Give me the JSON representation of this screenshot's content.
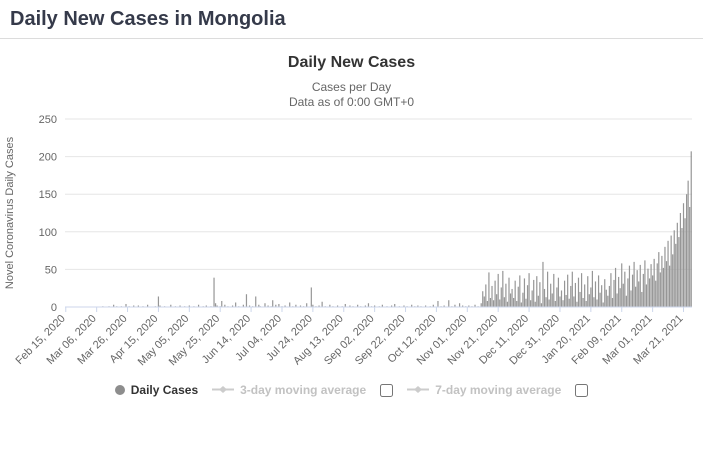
{
  "page": {
    "title": "Daily New Cases in Mongolia"
  },
  "chart": {
    "title": "Daily New Cases",
    "subtitle_line1": "Cases per Day",
    "subtitle_line2": "Data as of 0:00 GMT+0"
  },
  "legend": {
    "daily_cases": "Daily Cases",
    "ma3": "3-day moving average",
    "ma7": "7-day moving average"
  },
  "colors": {
    "bar": "#969696",
    "grid": "#e6e6e6",
    "axis_line": "#ccd6eb",
    "axis_text": "#666666",
    "disabled_legend": "#c2c2c2"
  },
  "chart_data": {
    "type": "bar",
    "title": "Daily New Cases",
    "subtitle": [
      "Cases per Day",
      "Data as of 0:00 GMT+0"
    ],
    "ylabel": "Novel Coronavirus Daily Cases",
    "xlabel": "",
    "ylim": [
      0,
      250
    ],
    "ytick_step": 50,
    "grid": true,
    "legend_position": "bottom",
    "start_date": "Feb 15, 2020",
    "xtick_interval": 20,
    "xtick_labels": [
      "Feb 15, 2020",
      "Mar 06, 2020",
      "Mar 26, 2020",
      "Apr 15, 2020",
      "May 05, 2020",
      "May 25, 2020",
      "Jun 14, 2020",
      "Jul 04, 2020",
      "Jul 24, 2020",
      "Aug 13, 2020",
      "Sep 02, 2020",
      "Sep 22, 2020",
      "Oct 12, 2020",
      "Nov 01, 2020",
      "Nov 21, 2020",
      "Dec 11, 2020",
      "Dec 31, 2020",
      "Jan 20, 2021",
      "Feb 09, 2021",
      "Mar 01, 2021",
      "Mar 21, 2021"
    ],
    "values": [
      0,
      0,
      0,
      0,
      0,
      0,
      0,
      0,
      0,
      0,
      0,
      0,
      0,
      0,
      0,
      0,
      0,
      0,
      0,
      0,
      0,
      0,
      0,
      0,
      1,
      0,
      0,
      0,
      1,
      0,
      0,
      3,
      0,
      1,
      0,
      0,
      1,
      0,
      0,
      4,
      0,
      1,
      0,
      0,
      2,
      0,
      0,
      2,
      0,
      0,
      1,
      0,
      0,
      3,
      0,
      0,
      0,
      0,
      1,
      0,
      14,
      2,
      0,
      0,
      1,
      0,
      0,
      0,
      3,
      0,
      0,
      1,
      0,
      0,
      2,
      0,
      0,
      1,
      0,
      0,
      2,
      0,
      0,
      1,
      0,
      0,
      3,
      0,
      0,
      1,
      0,
      2,
      0,
      0,
      1,
      0,
      39,
      5,
      2,
      0,
      1,
      8,
      0,
      3,
      0,
      1,
      0,
      0,
      2,
      0,
      6,
      0,
      1,
      0,
      0,
      3,
      0,
      17,
      0,
      2,
      0,
      1,
      0,
      14,
      0,
      3,
      1,
      0,
      0,
      5,
      0,
      2,
      0,
      1,
      9,
      0,
      3,
      0,
      4,
      0,
      1,
      0,
      2,
      0,
      0,
      6,
      0,
      1,
      0,
      3,
      0,
      0,
      2,
      0,
      1,
      0,
      5,
      0,
      0,
      26,
      3,
      0,
      1,
      0,
      2,
      0,
      7,
      0,
      1,
      0,
      0,
      3,
      0,
      1,
      0,
      0,
      2,
      0,
      0,
      1,
      0,
      4,
      0,
      0,
      2,
      0,
      1,
      0,
      0,
      3,
      0,
      1,
      0,
      0,
      2,
      0,
      5,
      0,
      1,
      0,
      2,
      0,
      0,
      1,
      0,
      3,
      0,
      0,
      1,
      0,
      0,
      2,
      0,
      4,
      0,
      0,
      1,
      0,
      0,
      2,
      0,
      1,
      0,
      0,
      3,
      0,
      1,
      0,
      2,
      0,
      1,
      0,
      0,
      2,
      0,
      0,
      1,
      0,
      3,
      0,
      0,
      8,
      0,
      1,
      0,
      2,
      0,
      0,
      9,
      0,
      1,
      0,
      3,
      0,
      0,
      5,
      0,
      2,
      0,
      1,
      0,
      2,
      0,
      1,
      0,
      3,
      0,
      1,
      0,
      5,
      21,
      14,
      30,
      8,
      46,
      12,
      28,
      9,
      35,
      17,
      44,
      10,
      26,
      48,
      13,
      31,
      7,
      39,
      18,
      24,
      12,
      35,
      8,
      27,
      42,
      6,
      19,
      38,
      11,
      29,
      45,
      9,
      22,
      36,
      7,
      41,
      15,
      33,
      5,
      60,
      24,
      13,
      47,
      10,
      31,
      18,
      44,
      8,
      26,
      39,
      14,
      22,
      9,
      35,
      16,
      43,
      11,
      28,
      47,
      14,
      32,
      7,
      39,
      20,
      45,
      12,
      30,
      8,
      41,
      17,
      26,
      48,
      13,
      34,
      10,
      42,
      19,
      29,
      6,
      37,
      23,
      15,
      28,
      45,
      12,
      36,
      52,
      18,
      40,
      25,
      58,
      31,
      47,
      15,
      38,
      55,
      22,
      43,
      60,
      27,
      49,
      34,
      56,
      20,
      44,
      62,
      30,
      51,
      38,
      57,
      42,
      64,
      35,
      58,
      73,
      46,
      68,
      52,
      80,
      61,
      88,
      55,
      95,
      70,
      102,
      84,
      112,
      93,
      125,
      105,
      138,
      118,
      150,
      168,
      133,
      207
    ]
  }
}
